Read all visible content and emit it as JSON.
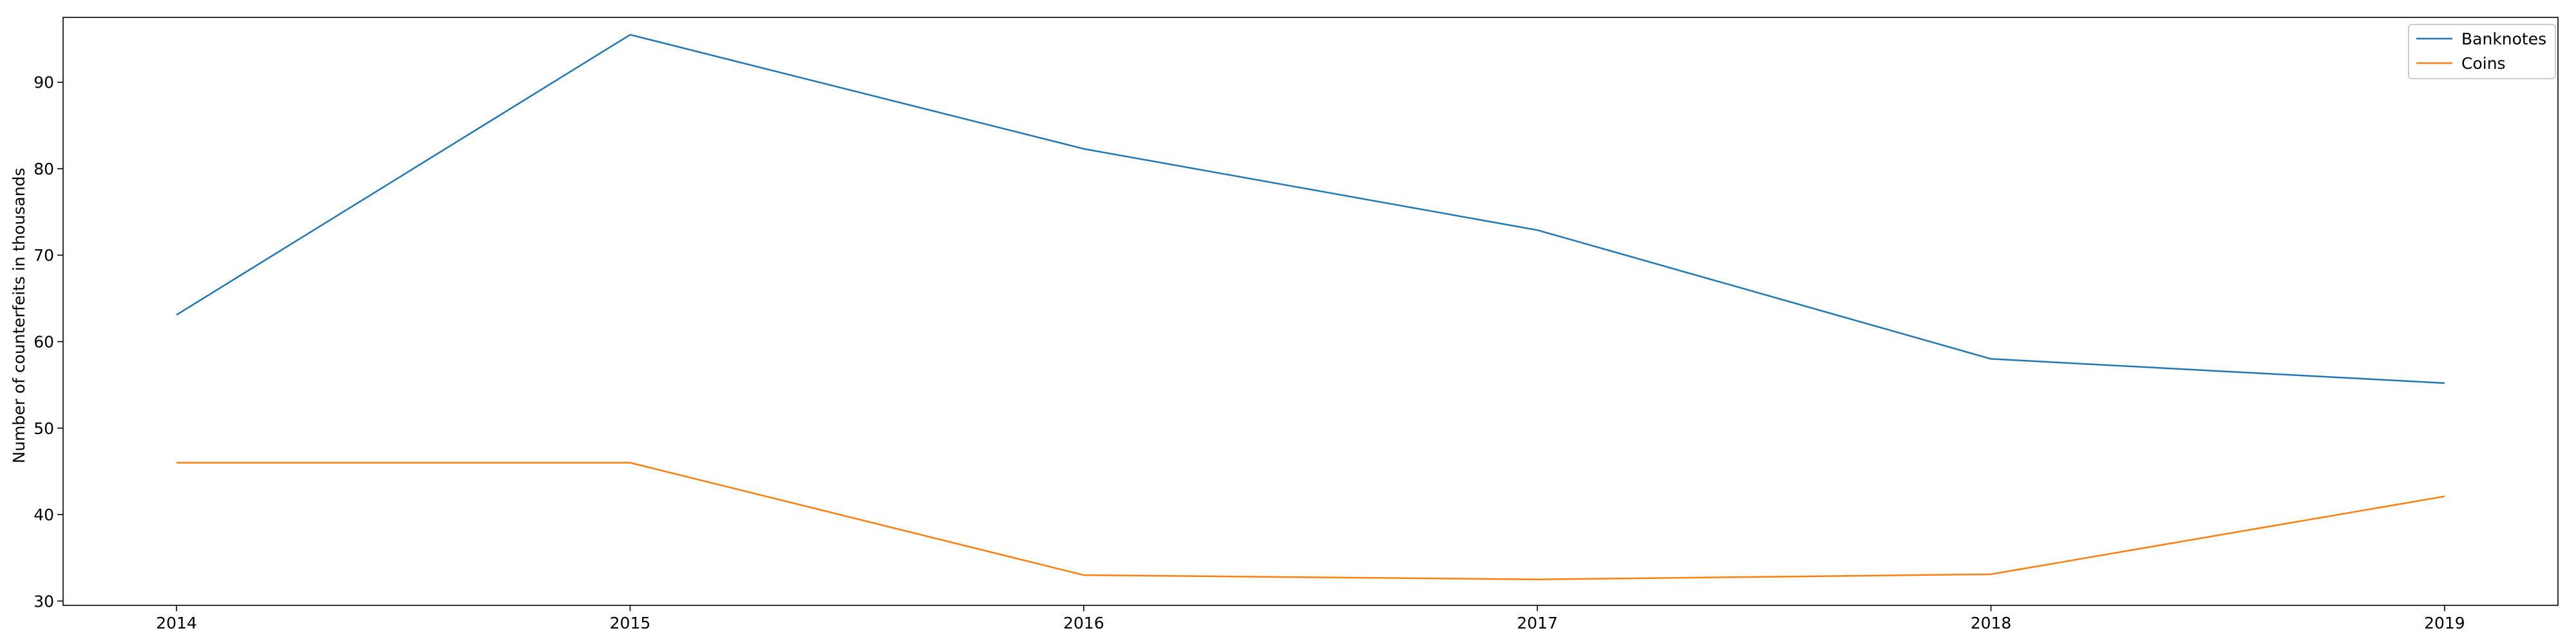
{
  "chart_data": {
    "type": "line",
    "title": "",
    "xlabel": "",
    "ylabel": "Number of counterfeits in thousands",
    "x": [
      "2014",
      "2015",
      "2016",
      "2017",
      "2018",
      "2019"
    ],
    "xlim": [
      2013.75,
      2019.25
    ],
    "ylim": [
      29.5,
      97.5
    ],
    "yticks": [
      30,
      40,
      50,
      60,
      70,
      80,
      90
    ],
    "grid": false,
    "legend_position": "top-right",
    "series": [
      {
        "name": "Banknotes",
        "color": "#1f77b4",
        "values": [
          63.1,
          95.5,
          82.3,
          72.9,
          58.0,
          55.2
        ]
      },
      {
        "name": "Coins",
        "color": "#ff7f0e",
        "values": [
          46.0,
          46.0,
          33.0,
          32.5,
          33.1,
          42.1
        ]
      }
    ]
  }
}
